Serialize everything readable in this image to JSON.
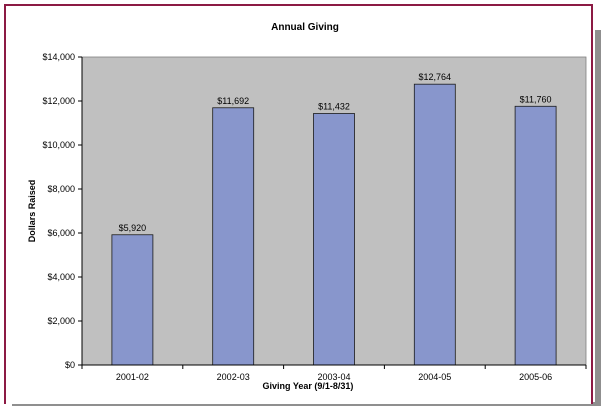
{
  "chart_data": {
    "type": "bar",
    "title": "Annual Giving",
    "xlabel": "Giving Year (9/1-8/31)",
    "ylabel": "Dollars Raised",
    "categories": [
      "2001-02",
      "2002-03",
      "2003-04",
      "2004-05",
      "2005-06"
    ],
    "values": [
      5920,
      11692,
      11432,
      12764,
      11760
    ],
    "value_labels": [
      "$5,920",
      "$11,692",
      "$11,432",
      "$12,764",
      "$11,760"
    ],
    "ylim": [
      0,
      14000
    ],
    "yticks": [
      0,
      2000,
      4000,
      6000,
      8000,
      10000,
      12000,
      14000
    ],
    "ytick_labels": [
      "$0",
      "$2,000",
      "$4,000",
      "$6,000",
      "$8,000",
      "$10,000",
      "$12,000",
      "$14,000"
    ],
    "grid": false,
    "legend": "none",
    "colors": {
      "bar_fill": "#8896cc",
      "bar_stroke": "#1a1a1a",
      "plot_background": "#c0c0c0",
      "frame_border": "#8c1a44"
    }
  }
}
